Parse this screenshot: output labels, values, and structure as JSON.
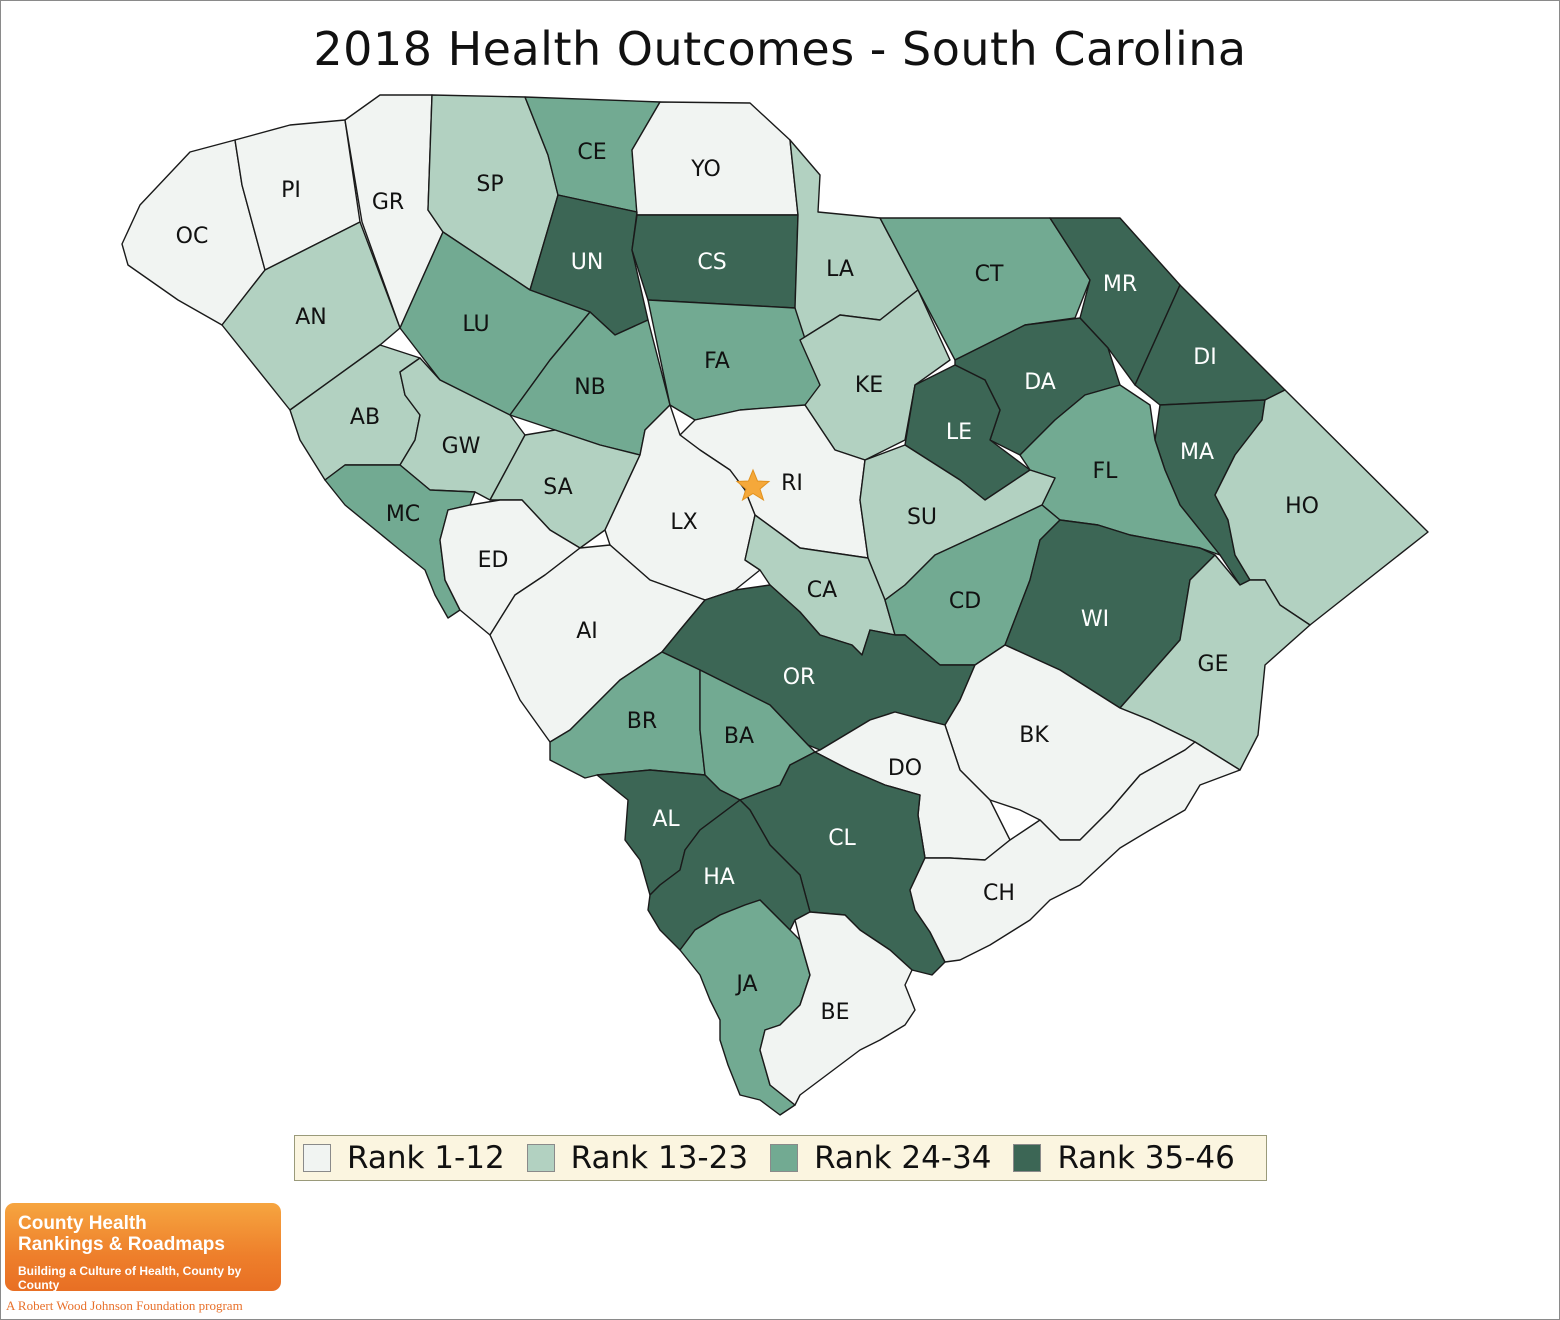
{
  "title": "2018 Health Outcomes - South Carolina",
  "legend": [
    {
      "label": "Rank 1-12",
      "color": "#f1f4f2"
    },
    {
      "label": "Rank 13-23",
      "color": "#b2d1c1"
    },
    {
      "label": "Rank 24-34",
      "color": "#72aa92"
    },
    {
      "label": "Rank 35-46",
      "color": "#3c6655"
    }
  ],
  "counties": [
    {
      "abbr": "OC",
      "rank_group": 1
    },
    {
      "abbr": "PI",
      "rank_group": 1
    },
    {
      "abbr": "GR",
      "rank_group": 1
    },
    {
      "abbr": "SP",
      "rank_group": 2
    },
    {
      "abbr": "CE",
      "rank_group": 3
    },
    {
      "abbr": "YO",
      "rank_group": 1
    },
    {
      "abbr": "AN",
      "rank_group": 2
    },
    {
      "abbr": "UN",
      "rank_group": 4
    },
    {
      "abbr": "CS",
      "rank_group": 4
    },
    {
      "abbr": "LA",
      "rank_group": 2
    },
    {
      "abbr": "CT",
      "rank_group": 3
    },
    {
      "abbr": "MR",
      "rank_group": 4
    },
    {
      "abbr": "LU",
      "rank_group": 3
    },
    {
      "abbr": "NB",
      "rank_group": 3
    },
    {
      "abbr": "FA",
      "rank_group": 3
    },
    {
      "abbr": "KE",
      "rank_group": 2
    },
    {
      "abbr": "DA",
      "rank_group": 4
    },
    {
      "abbr": "DI",
      "rank_group": 4
    },
    {
      "abbr": "AB",
      "rank_group": 2
    },
    {
      "abbr": "GW",
      "rank_group": 2
    },
    {
      "abbr": "LE",
      "rank_group": 4
    },
    {
      "abbr": "MA",
      "rank_group": 4
    },
    {
      "abbr": "RI",
      "rank_group": 1
    },
    {
      "abbr": "FL",
      "rank_group": 3
    },
    {
      "abbr": "SA",
      "rank_group": 2
    },
    {
      "abbr": "MC",
      "rank_group": 3
    },
    {
      "abbr": "LX",
      "rank_group": 1
    },
    {
      "abbr": "SU",
      "rank_group": 2
    },
    {
      "abbr": "HO",
      "rank_group": 2
    },
    {
      "abbr": "ED",
      "rank_group": 1
    },
    {
      "abbr": "CA",
      "rank_group": 2
    },
    {
      "abbr": "CD",
      "rank_group": 3
    },
    {
      "abbr": "WI",
      "rank_group": 4
    },
    {
      "abbr": "AI",
      "rank_group": 1
    },
    {
      "abbr": "OR",
      "rank_group": 4
    },
    {
      "abbr": "GE",
      "rank_group": 2
    },
    {
      "abbr": "BR",
      "rank_group": 3
    },
    {
      "abbr": "BA",
      "rank_group": 3
    },
    {
      "abbr": "BK",
      "rank_group": 1
    },
    {
      "abbr": "DO",
      "rank_group": 1
    },
    {
      "abbr": "AL",
      "rank_group": 4
    },
    {
      "abbr": "CL",
      "rank_group": 4
    },
    {
      "abbr": "HA",
      "rank_group": 4
    },
    {
      "abbr": "CH",
      "rank_group": 1
    },
    {
      "abbr": "JA",
      "rank_group": 3
    },
    {
      "abbr": "BE",
      "rank_group": 1
    }
  ],
  "capital_marker": {
    "icon": "star-icon",
    "color": "#f5a83a",
    "county": "RI"
  },
  "logo": {
    "line1": "County Health",
    "line2": "Rankings & Roadmaps",
    "tagline": "Building a Culture of Health, County by County",
    "foundation": "A Robert Wood Johnson Foundation program"
  }
}
